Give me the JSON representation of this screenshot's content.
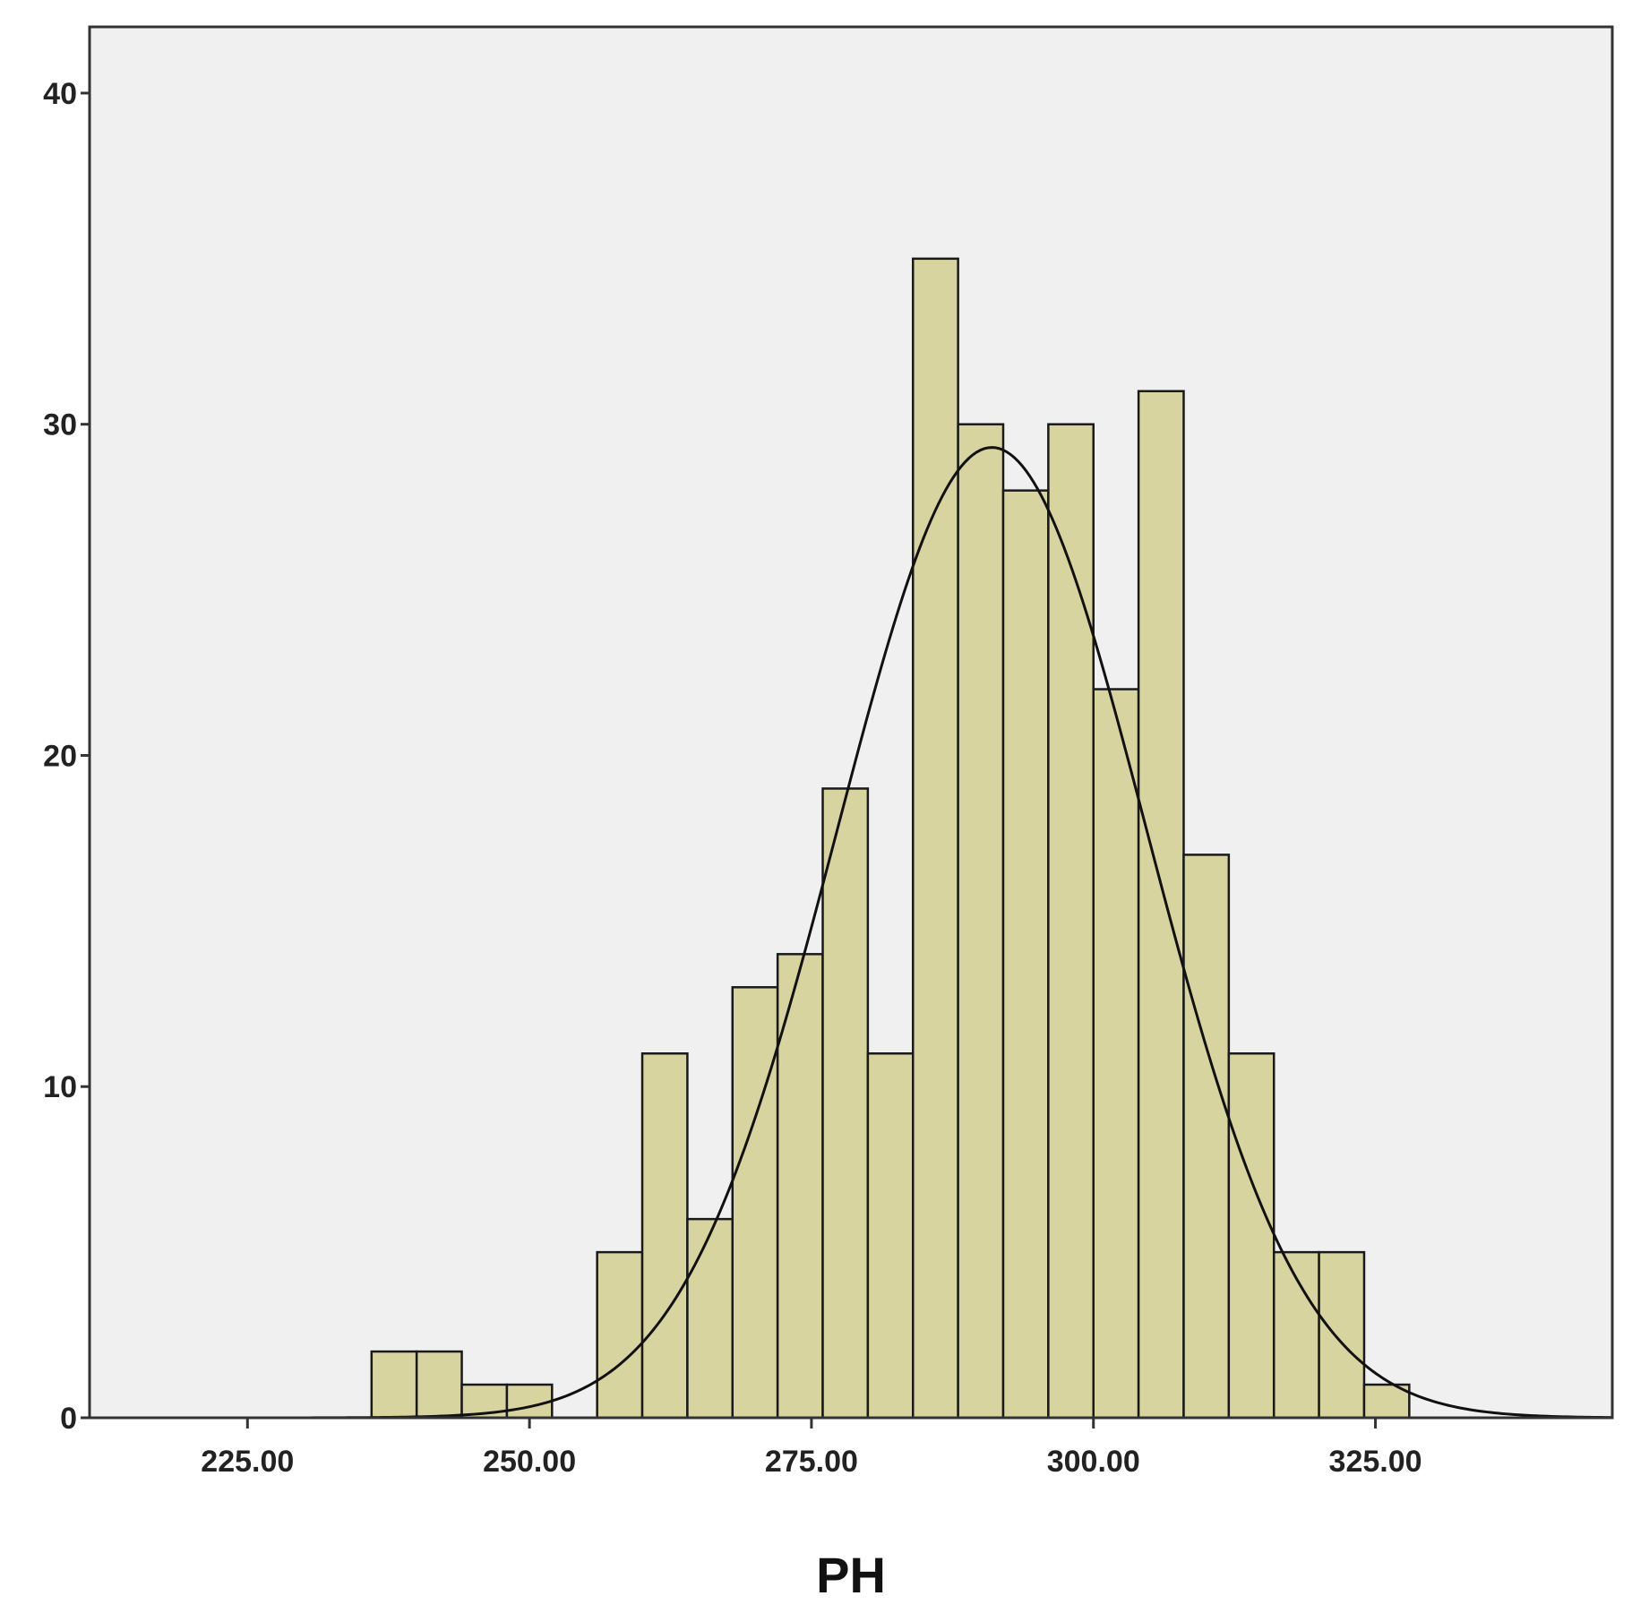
{
  "chart_data": {
    "type": "bar",
    "subtype": "histogram with normal curve",
    "xlabel": "PH",
    "ylabel": "",
    "xlim": [
      211,
      346
    ],
    "ylim": [
      0,
      42
    ],
    "x_ticks": [
      225,
      250,
      275,
      300,
      325
    ],
    "x_tick_labels": [
      "225.00",
      "250.00",
      "275.00",
      "300.00",
      "325.00"
    ],
    "y_ticks": [
      0,
      10,
      20,
      30,
      40
    ],
    "y_tick_labels": [
      "0",
      "10",
      "20",
      "30",
      "40"
    ],
    "bin_width": 4,
    "bins": [
      {
        "start": 236,
        "end": 240,
        "count": 2
      },
      {
        "start": 240,
        "end": 244,
        "count": 2
      },
      {
        "start": 244,
        "end": 248,
        "count": 1
      },
      {
        "start": 248,
        "end": 252,
        "count": 1
      },
      {
        "start": 256,
        "end": 260,
        "count": 5
      },
      {
        "start": 260,
        "end": 264,
        "count": 11
      },
      {
        "start": 264,
        "end": 268,
        "count": 6
      },
      {
        "start": 268,
        "end": 272,
        "count": 13
      },
      {
        "start": 272,
        "end": 276,
        "count": 14
      },
      {
        "start": 276,
        "end": 280,
        "count": 19
      },
      {
        "start": 280,
        "end": 284,
        "count": 11
      },
      {
        "start": 284,
        "end": 288,
        "count": 35
      },
      {
        "start": 288,
        "end": 292,
        "count": 30
      },
      {
        "start": 292,
        "end": 296,
        "count": 28
      },
      {
        "start": 296,
        "end": 300,
        "count": 30
      },
      {
        "start": 300,
        "end": 304,
        "count": 22
      },
      {
        "start": 304,
        "end": 308,
        "count": 31
      },
      {
        "start": 308,
        "end": 312,
        "count": 17
      },
      {
        "start": 312,
        "end": 316,
        "count": 11
      },
      {
        "start": 316,
        "end": 320,
        "count": 5
      },
      {
        "start": 320,
        "end": 324,
        "count": 5
      },
      {
        "start": 324,
        "end": 328,
        "count": 1
      }
    ],
    "normal_curve": {
      "mean": 291,
      "peak": 29.3,
      "sd": 13.7
    },
    "grid": false,
    "colors": {
      "bar_fill": "#d8d49f",
      "bar_stroke": "#1a1a1a",
      "plot_background": "#f0f0f0",
      "curve": "#111111"
    }
  }
}
